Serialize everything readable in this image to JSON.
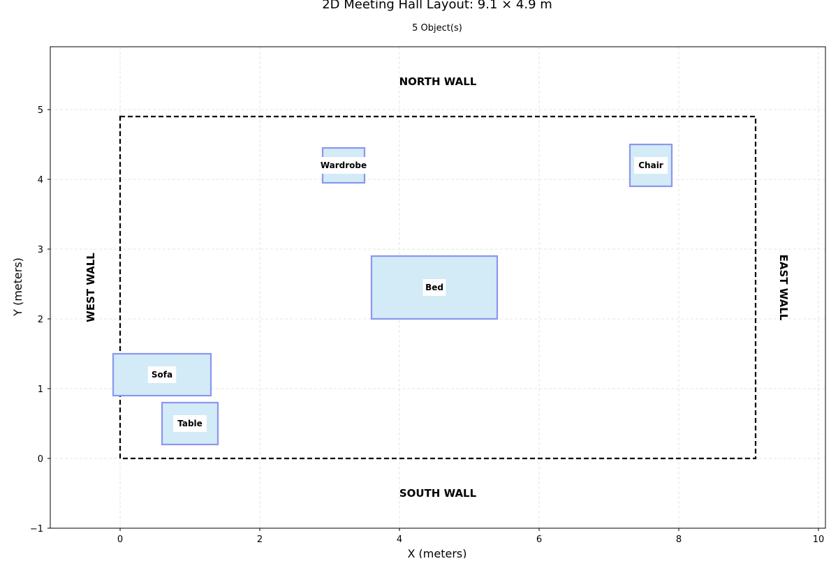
{
  "title": "2D Meeting Hall Layout: 9.1 × 4.9 m",
  "subtitle": "5 Object(s)",
  "chart_data": {
    "type": "floor-plan",
    "xlabel": "X (meters)",
    "ylabel": "Y (meters)",
    "xlim": [
      -1,
      10.1
    ],
    "ylim": [
      -1,
      5.9
    ],
    "xticks": [
      0,
      2,
      4,
      6,
      8,
      10
    ],
    "yticks": [
      -1,
      0,
      1,
      2,
      3,
      4,
      5
    ],
    "grid": true,
    "room": {
      "x": 0,
      "y": 0,
      "width": 9.1,
      "height": 4.9
    },
    "walls": {
      "north": "NORTH WALL",
      "south": "SOUTH WALL",
      "west": "WEST WALL",
      "east": "EAST WALL"
    },
    "objects": [
      {
        "label": "Wardrobe",
        "x": 2.9,
        "y": 3.95,
        "width": 0.6,
        "height": 0.5
      },
      {
        "label": "Chair",
        "x": 7.3,
        "y": 3.9,
        "width": 0.6,
        "height": 0.6
      },
      {
        "label": "Bed",
        "x": 3.6,
        "y": 2.0,
        "width": 1.8,
        "height": 0.9
      },
      {
        "label": "Sofa",
        "x": -0.1,
        "y": 0.9,
        "width": 1.4,
        "height": 0.6
      },
      {
        "label": "Table",
        "x": 0.6,
        "y": 0.2,
        "width": 0.8,
        "height": 0.6
      }
    ],
    "colors": {
      "object_fill": "#d2ebf7",
      "object_stroke": "#8c96f0",
      "room_stroke": "#000000",
      "grid": "#dcdcdc"
    }
  }
}
